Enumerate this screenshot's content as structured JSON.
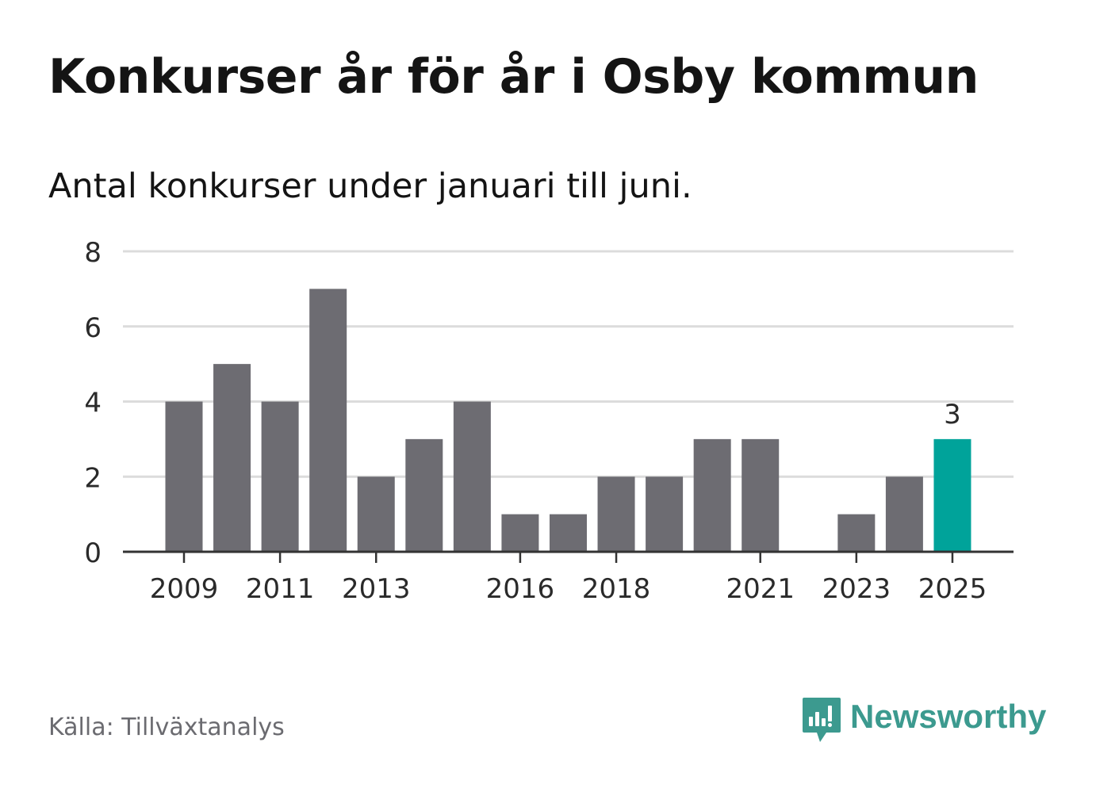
{
  "title": "Konkurser år för år i Osby kommun",
  "subtitle": "Antal konkurser under januari till juni.",
  "source": "Källa: Tillväxtanalys",
  "brand": {
    "name": "Newsworthy",
    "icon": "newsworthy-logo-icon",
    "color": "#3c9a8f"
  },
  "chart_data": {
    "type": "bar",
    "categories": [
      "2009",
      "2010",
      "2011",
      "2012",
      "2013",
      "2014",
      "2015",
      "2016",
      "2017",
      "2018",
      "2019",
      "2020",
      "2021",
      "2022",
      "2023",
      "2024",
      "2025"
    ],
    "values": [
      4,
      5,
      4,
      7,
      2,
      3,
      4,
      1,
      1,
      2,
      2,
      3,
      3,
      0,
      1,
      2,
      3
    ],
    "x_tick_labels": [
      "2009",
      "2011",
      "2013",
      "2016",
      "2018",
      "2021",
      "2023",
      "2025"
    ],
    "ylim": [
      0,
      8
    ],
    "y_ticks": [
      0,
      2,
      4,
      6,
      8
    ],
    "grid": true,
    "bar_color": "#6d6c72",
    "highlight": {
      "category": "2025",
      "color": "#00a39a",
      "label": "3"
    },
    "title": "Konkurser år för år i Osby kommun",
    "xlabel": "",
    "ylabel": ""
  }
}
